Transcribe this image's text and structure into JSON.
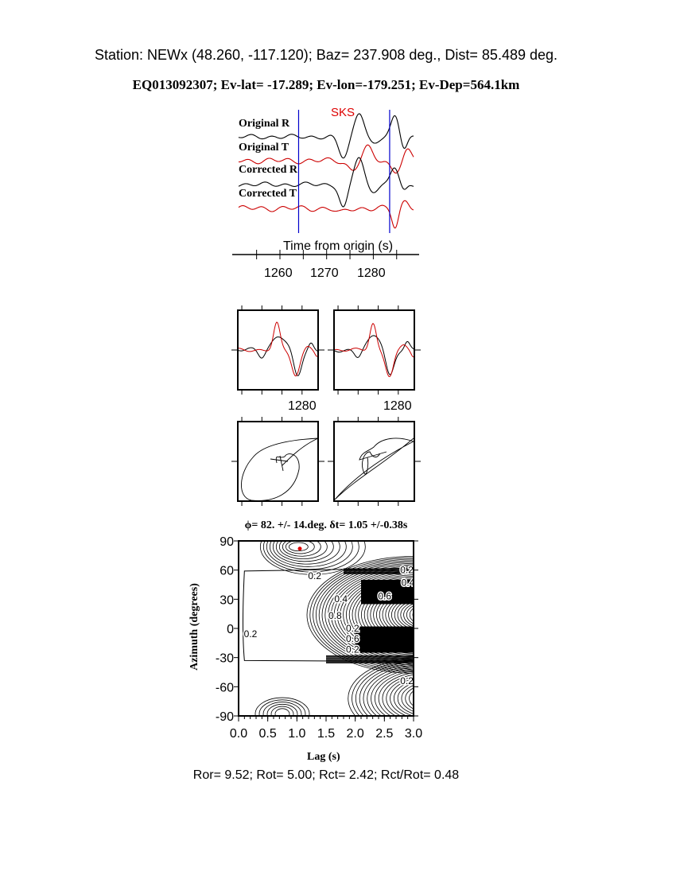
{
  "header": {
    "station_line": "Station: NEWx (48.260, -117.120); Baz=  237.908 deg., Dist=   85.489 deg.",
    "event_line": "EQ013092307; Ev-lat= -17.289; Ev-lon=-179.251; Ev-Dep=564.1km"
  },
  "chart_data": [
    {
      "type": "line",
      "phase_label": "SKS",
      "traces": [
        {
          "name": "Original R",
          "color": "#000000"
        },
        {
          "name": "Original T",
          "color": "#cc0000"
        },
        {
          "name": "Corrected R",
          "color": "#000000"
        },
        {
          "name": "Corrected T",
          "color": "#cc0000"
        }
      ],
      "window_color": "#0000cc",
      "window_s": [
        1264,
        1283.5
      ],
      "xlabel": "Time from origin (s)",
      "xticks": [
        "1260",
        "1270",
        "1280"
      ]
    },
    {
      "type": "line",
      "panels": [
        {
          "xtick": "1280",
          "series_colors": [
            "#000000",
            "#cc0000"
          ]
        },
        {
          "xtick": "1280",
          "series_colors": [
            "#000000",
            "#cc0000"
          ]
        }
      ]
    },
    {
      "type": "scatter",
      "description_panels": [
        "particle-motion-original",
        "particle-motion-corrected"
      ]
    },
    {
      "type": "heatmap",
      "title": "ϕ= 82. +/- 14.deg. δt= 1.05 +/-0.38s",
      "xlabel": "Lag (s)",
      "ylabel": "Azimuth (degrees)",
      "xlim": [
        0,
        3
      ],
      "ylim": [
        -90,
        90
      ],
      "xticks": [
        "0.0",
        "0.5",
        "1.0",
        "1.5",
        "2.0",
        "2.5",
        "3.0"
      ],
      "yticks": [
        "90",
        "60",
        "30",
        "0",
        "-30",
        "-60",
        "-90"
      ],
      "contour_labels": [
        "0.2",
        "0.2",
        "0.4",
        "0.6",
        "0.8",
        "0.2",
        "0.6",
        "0.4",
        "0.2",
        "0.2",
        "0.4"
      ],
      "best_fit": {
        "lag": 1.05,
        "azimuth": 82,
        "color": "#dd0000"
      }
    }
  ],
  "footer": {
    "ratios": "Ror= 9.52; Rot= 5.00; Rct= 2.42; Rct/Rot= 0.48"
  }
}
